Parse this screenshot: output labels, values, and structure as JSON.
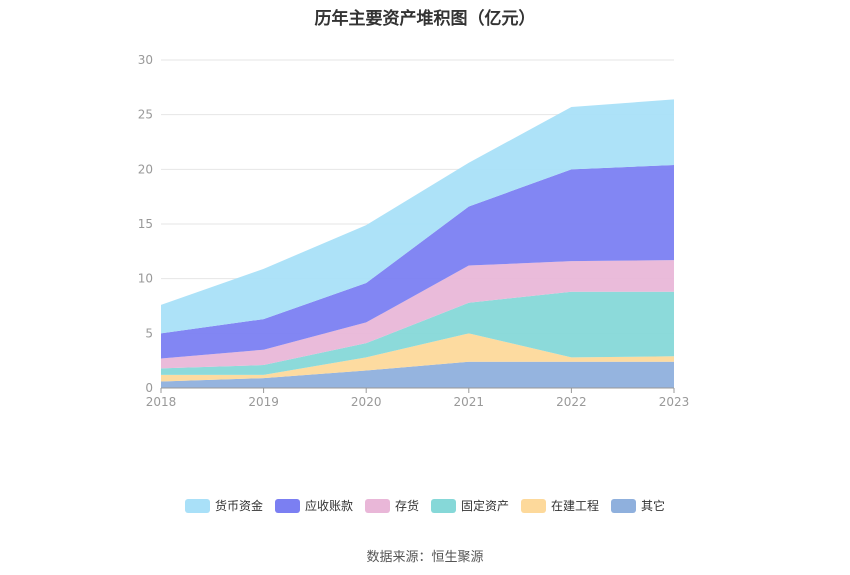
{
  "chart_data": {
    "type": "area",
    "stacked": true,
    "title": "历年主要资产堆积图（亿元）",
    "source": "数据来源：恒生聚源",
    "x": [
      "2018",
      "2019",
      "2020",
      "2021",
      "2022",
      "2023"
    ],
    "ylim": [
      0,
      30
    ],
    "yticks": [
      0,
      5,
      10,
      15,
      20,
      25,
      30
    ],
    "grid": true,
    "legend_position": "bottom",
    "series": [
      {
        "name": "其它",
        "color": "#8fb0dd",
        "values": [
          0.6,
          0.9,
          1.6,
          2.4,
          2.4,
          2.4
        ]
      },
      {
        "name": "在建工程",
        "color": "#fdd99b",
        "values": [
          0.6,
          0.3,
          1.2,
          2.6,
          0.4,
          0.5
        ]
      },
      {
        "name": "固定资产",
        "color": "#86d8d8",
        "values": [
          0.6,
          0.9,
          1.3,
          2.8,
          6.0,
          5.9
        ]
      },
      {
        "name": "存货",
        "color": "#e9b7d8",
        "values": [
          0.9,
          1.4,
          1.9,
          3.4,
          2.8,
          2.9
        ]
      },
      {
        "name": "应收账款",
        "color": "#7b7ff2",
        "values": [
          2.3,
          2.8,
          3.6,
          5.4,
          8.4,
          8.7
        ]
      },
      {
        "name": "货币资金",
        "color": "#a9e0f8",
        "values": [
          2.6,
          4.6,
          5.3,
          4.0,
          5.7,
          6.0
        ]
      }
    ],
    "legend_order": [
      "货币资金",
      "应收账款",
      "存货",
      "固定资产",
      "在建工程",
      "其它"
    ]
  }
}
